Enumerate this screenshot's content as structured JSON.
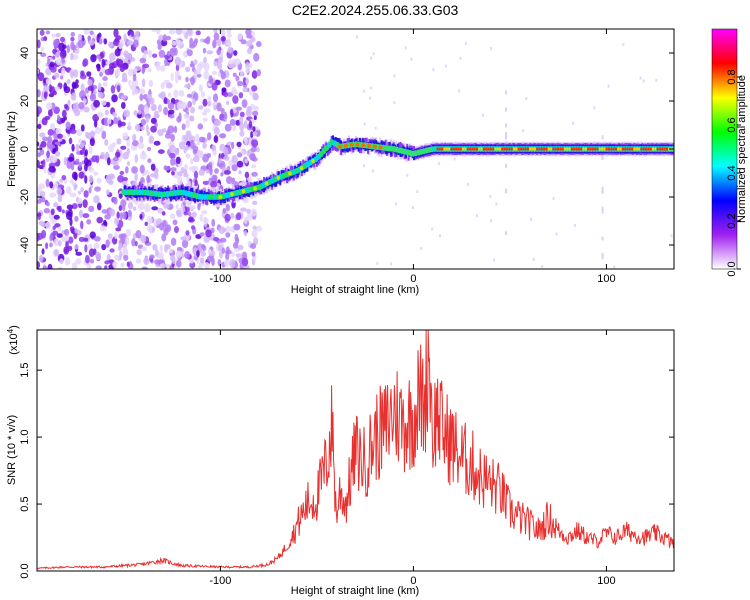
{
  "title": "C2E2.2024.255.06.33.G03",
  "chart_data": [
    {
      "type": "heatmap",
      "xlabel": "Height of straight line (km)",
      "ylabel": "Frequency (Hz)",
      "xlim": [
        -195,
        135
      ],
      "ylim": [
        -50,
        50
      ],
      "x_ticks": [
        -100,
        0,
        100
      ],
      "x_tick_labels": [
        "-100",
        "0",
        "100"
      ],
      "y_ticks": [
        -40,
        -20,
        0,
        20,
        40
      ],
      "y_tick_labels": [
        "-40",
        "-20",
        "0",
        "20",
        "40"
      ],
      "colorbar": {
        "label": "Normalized spectral amplitude",
        "range": [
          0,
          1
        ],
        "ticks": [
          0.0,
          0.2,
          0.4,
          0.6,
          0.8
        ],
        "tick_labels": [
          "0.0",
          "0.2",
          "0.4",
          "0.6",
          "0.8"
        ],
        "colors": [
          "#ffffff",
          "#a020f0",
          "#0000ff",
          "#00ffff",
          "#00ff00",
          "#ffff00",
          "#ff0000",
          "#ff00ff"
        ]
      },
      "ridge": {
        "x": [
          -150,
          -140,
          -130,
          -120,
          -110,
          -100,
          -90,
          -80,
          -70,
          -60,
          -50,
          -42,
          -38,
          -30,
          -20,
          -10,
          0,
          5,
          10,
          20,
          40,
          60,
          80,
          100,
          120,
          135
        ],
        "y": [
          -18,
          -18,
          -19,
          -18,
          -20,
          -20,
          -18,
          -16,
          -12,
          -9,
          -4,
          3,
          1,
          2,
          1,
          0,
          -2,
          -1,
          0,
          0,
          0,
          0,
          0,
          0,
          0,
          0
        ]
      },
      "grid": false
    },
    {
      "type": "line",
      "xlabel": "Height of straight line (km)",
      "ylabel": "SNR (10 * v/v)",
      "y_multiplier": "(x10",
      "y_multiplier_exp": "4",
      "y_multiplier_close": ")",
      "xlim": [
        -195,
        135
      ],
      "ylim": [
        0,
        1.8
      ],
      "x_ticks": [
        -100,
        0,
        100
      ],
      "x_tick_labels": [
        "-100",
        "0",
        "100"
      ],
      "y_ticks": [
        0.0,
        0.5,
        1.0,
        1.5
      ],
      "y_tick_labels": [
        "0.0",
        "0.5",
        "1.0",
        "1.5"
      ],
      "series": [
        {
          "color": "#e8312f",
          "x": [
            -195,
            -180,
            -160,
            -140,
            -130,
            -120,
            -100,
            -85,
            -75,
            -70,
            -65,
            -60,
            -55,
            -50,
            -45,
            -42,
            -40,
            -38,
            -35,
            -30,
            -25,
            -20,
            -15,
            -10,
            -5,
            0,
            3,
            6,
            8,
            10,
            12,
            15,
            20,
            25,
            30,
            35,
            40,
            45,
            50,
            55,
            60,
            65,
            70,
            75,
            80,
            85,
            90,
            95,
            100,
            105,
            110,
            115,
            120,
            125,
            130,
            135
          ],
          "y": [
            0.02,
            0.03,
            0.03,
            0.05,
            0.08,
            0.04,
            0.03,
            0.03,
            0.05,
            0.1,
            0.2,
            0.35,
            0.5,
            0.55,
            0.8,
            1.1,
            0.4,
            0.6,
            0.5,
            0.9,
            0.8,
            1.0,
            1.05,
            1.2,
            1.1,
            1.15,
            1.3,
            1.25,
            1.75,
            1.0,
            1.2,
            1.05,
            0.95,
            0.85,
            0.8,
            0.7,
            0.65,
            0.6,
            0.45,
            0.4,
            0.35,
            0.3,
            0.4,
            0.3,
            0.25,
            0.3,
            0.25,
            0.22,
            0.28,
            0.25,
            0.3,
            0.27,
            0.25,
            0.28,
            0.25,
            0.2
          ]
        }
      ],
      "grid": false
    }
  ]
}
